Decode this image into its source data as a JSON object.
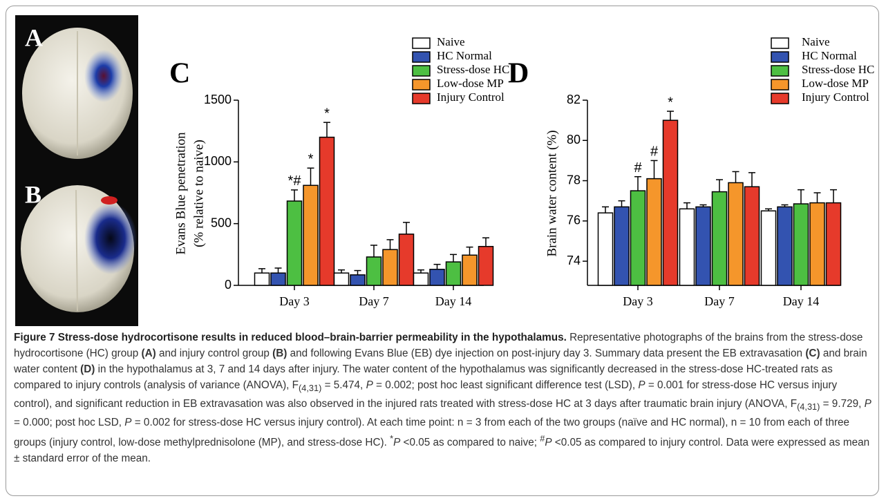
{
  "photo_labels": [
    "A",
    "B"
  ],
  "chart_data": [
    {
      "type": "bar",
      "panel": "C",
      "ylabel": [
        "Evans Blue penetration",
        "(% relative to naive)"
      ],
      "categories": [
        "Day 3",
        "Day 7",
        "Day 14"
      ],
      "ylim": [
        0,
        1500
      ],
      "yticks": [
        0,
        500,
        1000,
        1500
      ],
      "grid": false,
      "series": [
        {
          "name": "Naive",
          "color": "#ffffff",
          "values": [
            100,
            100,
            100
          ],
          "errors": [
            35,
            25,
            25
          ],
          "markers": [
            null,
            null,
            null
          ]
        },
        {
          "name": "HC Normal",
          "color": "#3353b0",
          "values": [
            100,
            85,
            130
          ],
          "errors": [
            40,
            35,
            40
          ],
          "markers": [
            null,
            null,
            null
          ]
        },
        {
          "name": "Stress-dose HC",
          "color": "#4dbf42",
          "values": [
            683,
            230,
            190
          ],
          "errors": [
            90,
            95,
            60
          ],
          "markers": [
            "*#",
            null,
            null
          ]
        },
        {
          "name": "Low-dose MP",
          "color": "#f5962b",
          "values": [
            810,
            290,
            245
          ],
          "errors": [
            140,
            80,
            65
          ],
          "markers": [
            "*",
            null,
            null
          ]
        },
        {
          "name": "Injury Control",
          "color": "#e63a2b",
          "values": [
            1200,
            415,
            315
          ],
          "errors": [
            120,
            95,
            70
          ],
          "markers": [
            "*",
            null,
            null
          ]
        }
      ]
    },
    {
      "type": "bar",
      "panel": "D",
      "ylabel": [
        "Brain water content (%)"
      ],
      "categories": [
        "Day 3",
        "Day 7",
        "Day 14"
      ],
      "ylim": [
        72.8,
        82
      ],
      "yticks": [
        74,
        76,
        78,
        80,
        82
      ],
      "grid": false,
      "series": [
        {
          "name": "Naive",
          "color": "#ffffff",
          "values": [
            76.4,
            76.6,
            76.5
          ],
          "errors": [
            0.3,
            0.3,
            0.1
          ],
          "markers": [
            null,
            null,
            null
          ]
        },
        {
          "name": "HC Normal",
          "color": "#3353b0",
          "values": [
            76.7,
            76.7,
            76.7
          ],
          "errors": [
            0.3,
            0.1,
            0.1
          ],
          "markers": [
            null,
            null,
            null
          ]
        },
        {
          "name": "Stress-dose HC",
          "color": "#4dbf42",
          "values": [
            77.5,
            77.45,
            76.85
          ],
          "errors": [
            0.7,
            0.6,
            0.7
          ],
          "markers": [
            "#",
            null,
            null
          ]
        },
        {
          "name": "Low-dose MP",
          "color": "#f5962b",
          "values": [
            78.1,
            77.9,
            76.9
          ],
          "errors": [
            0.9,
            0.55,
            0.5
          ],
          "markers": [
            "#",
            null,
            null
          ]
        },
        {
          "name": "Injury Control",
          "color": "#e63a2b",
          "values": [
            81.0,
            77.7,
            76.9
          ],
          "errors": [
            0.45,
            0.7,
            0.65
          ],
          "markers": [
            "*",
            null,
            null
          ]
        }
      ]
    }
  ],
  "caption": {
    "title": "Figure 7 Stress-dose hydrocortisone results in reduced blood–brain-barrier permeability in the hypothalamus.",
    "body": [
      "Representative photographs of the brains from the stress-dose hydrocortisone (HC) group ",
      "(A)",
      " and injury control group ",
      "(B)",
      " and following Evans Blue (EB) dye injection on post-injury day 3. Summary data present the EB extravasation ",
      "(C)",
      " and brain water content ",
      "(D)",
      " in the hypothalamus at 3, 7 and 14 days after injury. The water content of the hypothalamus was significantly decreased in the stress-dose HC-treated rats as compared to injury controls (analysis of variance (ANOVA), F",
      "(4,31)",
      " = 5.474, ",
      "P",
      " = 0.002; post hoc least significant difference test (LSD), ",
      "P",
      " = 0.001 for stress-dose HC versus injury control), and significant reduction in EB extravasation was also observed in the injured rats treated with stress-dose HC at 3 days after traumatic brain injury (ANOVA, F",
      "(4,31)",
      " = 9.729, ",
      "P",
      " = 0.000; post hoc LSD, ",
      "P",
      " = 0.002 for stress-dose HC versus injury control). At each time point: n = 3 from each of the two groups (naïve and HC normal), n = 10 from each of three groups (injury control, low-dose methylprednisolone (MP), and stress-dose HC). ",
      "*",
      "P",
      " <0.05 as compared to naive; ",
      "#",
      "P",
      " <0.05 as compared to injury control. Data were expressed as mean ± standard error of the mean."
    ]
  }
}
